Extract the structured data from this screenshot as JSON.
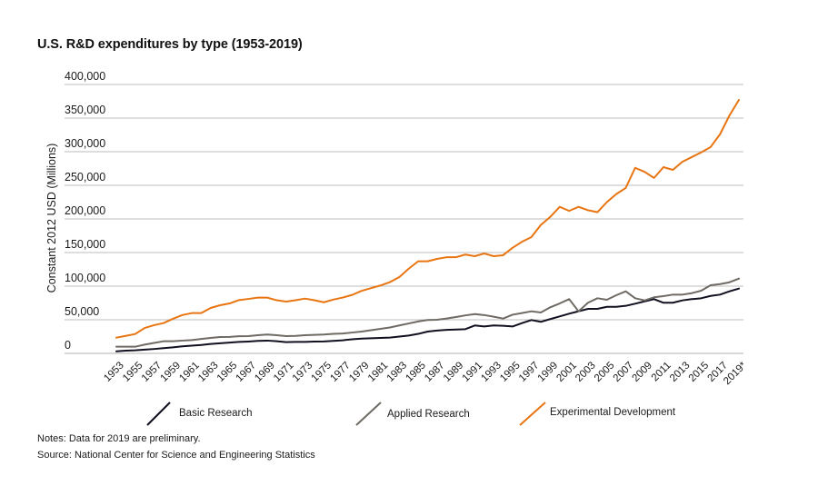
{
  "chart_data": {
    "type": "line",
    "title": "U.S. R&D expenditures by type (1953-2019)",
    "xlabel": "",
    "ylabel": "Constant 2012 USD (Millions)",
    "ylim": [
      0,
      400000
    ],
    "yticks": [
      0,
      50000,
      100000,
      150000,
      200000,
      250000,
      300000,
      350000,
      400000
    ],
    "ytick_labels": [
      "0",
      "50,000",
      "100,000",
      "150,000",
      "200,000",
      "250,000",
      "300,000",
      "350,000",
      "400,000"
    ],
    "grid": "horizontal",
    "x": [
      1953,
      1954,
      1955,
      1956,
      1957,
      1958,
      1959,
      1960,
      1961,
      1962,
      1963,
      1964,
      1965,
      1966,
      1967,
      1968,
      1969,
      1970,
      1971,
      1972,
      1973,
      1974,
      1975,
      1976,
      1977,
      1978,
      1979,
      1980,
      1981,
      1982,
      1983,
      1984,
      1985,
      1986,
      1987,
      1988,
      1989,
      1990,
      1991,
      1992,
      1993,
      1994,
      1995,
      1996,
      1997,
      1998,
      1999,
      2000,
      2001,
      2002,
      2003,
      2004,
      2005,
      2006,
      2007,
      2008,
      2009,
      2010,
      2011,
      2012,
      2013,
      2014,
      2015,
      2016,
      2017,
      2018,
      2019
    ],
    "xtick_labels": [
      "1953",
      "1955",
      "1957",
      "1959",
      "1961",
      "1963",
      "1965",
      "1967",
      "1969",
      "1971",
      "1973",
      "1975",
      "1977",
      "1979",
      "1981",
      "1983",
      "1985",
      "1987",
      "1989",
      "1991",
      "1993",
      "1995",
      "1997",
      "1999",
      "2001",
      "2003",
      "2005",
      "2007",
      "2009",
      "2011",
      "2013",
      "2015",
      "2017",
      "2019*"
    ],
    "xtick_years": [
      1953,
      1955,
      1957,
      1959,
      1961,
      1963,
      1965,
      1967,
      1969,
      1971,
      1973,
      1975,
      1977,
      1979,
      1981,
      1983,
      1985,
      1987,
      1989,
      1991,
      1993,
      1995,
      1997,
      1999,
      2001,
      2003,
      2005,
      2007,
      2009,
      2011,
      2013,
      2015,
      2017,
      2019
    ],
    "legend_position": "bottom",
    "series": [
      {
        "name": "Basic Research",
        "color": "#101020",
        "values": [
          3100,
          4000,
          4500,
          5500,
          6500,
          7700,
          9000,
          10500,
          11500,
          12500,
          14000,
          15000,
          16000,
          17000,
          17600,
          18500,
          19000,
          18000,
          16700,
          17000,
          17000,
          17600,
          17800,
          18500,
          19500,
          21000,
          22000,
          22500,
          23000,
          23400,
          25000,
          26500,
          29000,
          32400,
          34000,
          35000,
          35500,
          36000,
          41500,
          40000,
          41500,
          41000,
          40000,
          45000,
          49600,
          46900,
          51000,
          55000,
          59000,
          62600,
          66200,
          66200,
          69300,
          69300,
          70700,
          73900,
          77400,
          80700,
          75300,
          75300,
          78800,
          80700,
          82000,
          85500,
          87400,
          92300,
          96400
        ]
      },
      {
        "name": "Applied Research",
        "color": "#6f6a64",
        "values": [
          9900,
          9900,
          9900,
          13000,
          15500,
          18000,
          18000,
          19000,
          19800,
          21500,
          23000,
          24300,
          24500,
          25500,
          25700,
          27000,
          28000,
          27000,
          25700,
          26000,
          27000,
          27500,
          28000,
          29000,
          29500,
          31000,
          32500,
          34500,
          36500,
          38500,
          41500,
          44500,
          47500,
          49600,
          50000,
          51800,
          54000,
          56500,
          58500,
          57000,
          54500,
          51800,
          57500,
          60000,
          62600,
          60800,
          68500,
          74300,
          80700,
          62600,
          75300,
          82000,
          79700,
          86500,
          92300,
          82000,
          78800,
          83400,
          85100,
          87400,
          87400,
          89600,
          93200,
          101400,
          103000,
          105800,
          111200
        ]
      },
      {
        "name": "Experimental Development",
        "color": "#e87511",
        "values": [
          23400,
          26000,
          28800,
          37800,
          42000,
          45000,
          51400,
          57000,
          59900,
          59900,
          67600,
          71600,
          74300,
          79300,
          81000,
          82900,
          82900,
          79000,
          77000,
          79000,
          81500,
          79000,
          76000,
          80000,
          83000,
          87000,
          93000,
          97000,
          101000,
          106000,
          113500,
          126000,
          137000,
          137000,
          140500,
          143000,
          143000,
          147000,
          144600,
          148600,
          144600,
          146000,
          157000,
          166000,
          173000,
          191000,
          203000,
          218000,
          212000,
          218000,
          213000,
          210000,
          225000,
          237000,
          246000,
          276000,
          270000,
          261000,
          277000,
          273000,
          285000,
          292000,
          299000,
          307000,
          326000,
          354000,
          377000
        ]
      }
    ]
  },
  "notes": {
    "note": "Notes: Data for 2019 are preliminary.",
    "source": "Source: National Center for Science and Engineering Statistics"
  },
  "colors": {
    "grid": "#bdbdbd",
    "axis": "#b0b0b0"
  }
}
